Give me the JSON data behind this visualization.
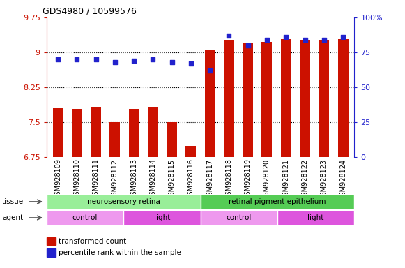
{
  "title": "GDS4980 / 10599576",
  "samples": [
    "GSM928109",
    "GSM928110",
    "GSM928111",
    "GSM928112",
    "GSM928113",
    "GSM928114",
    "GSM928115",
    "GSM928116",
    "GSM928117",
    "GSM928118",
    "GSM928119",
    "GSM928120",
    "GSM928121",
    "GSM928122",
    "GSM928123",
    "GSM928124"
  ],
  "transformed_count": [
    7.8,
    7.78,
    7.82,
    7.5,
    7.78,
    7.82,
    7.5,
    6.98,
    9.05,
    9.25,
    9.2,
    9.22,
    9.28,
    9.25,
    9.25,
    9.28
  ],
  "percentile_rank": [
    70,
    70,
    70,
    68,
    69,
    70,
    68,
    67,
    62,
    87,
    80,
    84,
    86,
    84,
    84,
    86
  ],
  "ylim_left": [
    6.75,
    9.75
  ],
  "ylim_right": [
    0,
    100
  ],
  "yticks_left": [
    6.75,
    7.5,
    8.25,
    9.0,
    9.75
  ],
  "ytick_labels_left": [
    "6.75",
    "7.5",
    "8.25",
    "9",
    "9.75"
  ],
  "yticks_right": [
    0,
    25,
    50,
    75,
    100
  ],
  "ytick_labels_right": [
    "0",
    "25",
    "50",
    "75",
    "100%"
  ],
  "hlines": [
    7.5,
    8.25,
    9.0
  ],
  "bar_color": "#cc1100",
  "dot_color": "#2222cc",
  "bar_bottom": 6.75,
  "tissue_groups": [
    {
      "label": "neurosensory retina",
      "start": 0,
      "end": 8,
      "color": "#99ee99"
    },
    {
      "label": "retinal pigment epithelium",
      "start": 8,
      "end": 16,
      "color": "#55cc55"
    }
  ],
  "agent_groups": [
    {
      "label": "control",
      "start": 0,
      "end": 4,
      "color": "#ee99ee"
    },
    {
      "label": "light",
      "start": 4,
      "end": 8,
      "color": "#dd55dd"
    },
    {
      "label": "control",
      "start": 8,
      "end": 12,
      "color": "#ee99ee"
    },
    {
      "label": "light",
      "start": 12,
      "end": 16,
      "color": "#dd55dd"
    }
  ],
  "legend_items": [
    {
      "label": "transformed count",
      "color": "#cc1100"
    },
    {
      "label": "percentile rank within the sample",
      "color": "#2222cc"
    }
  ],
  "title_color": "#000000",
  "left_axis_color": "#cc1100",
  "right_axis_color": "#2222cc",
  "bar_width": 0.55,
  "label_fontsize": 7.0,
  "tick_fontsize": 8.0
}
